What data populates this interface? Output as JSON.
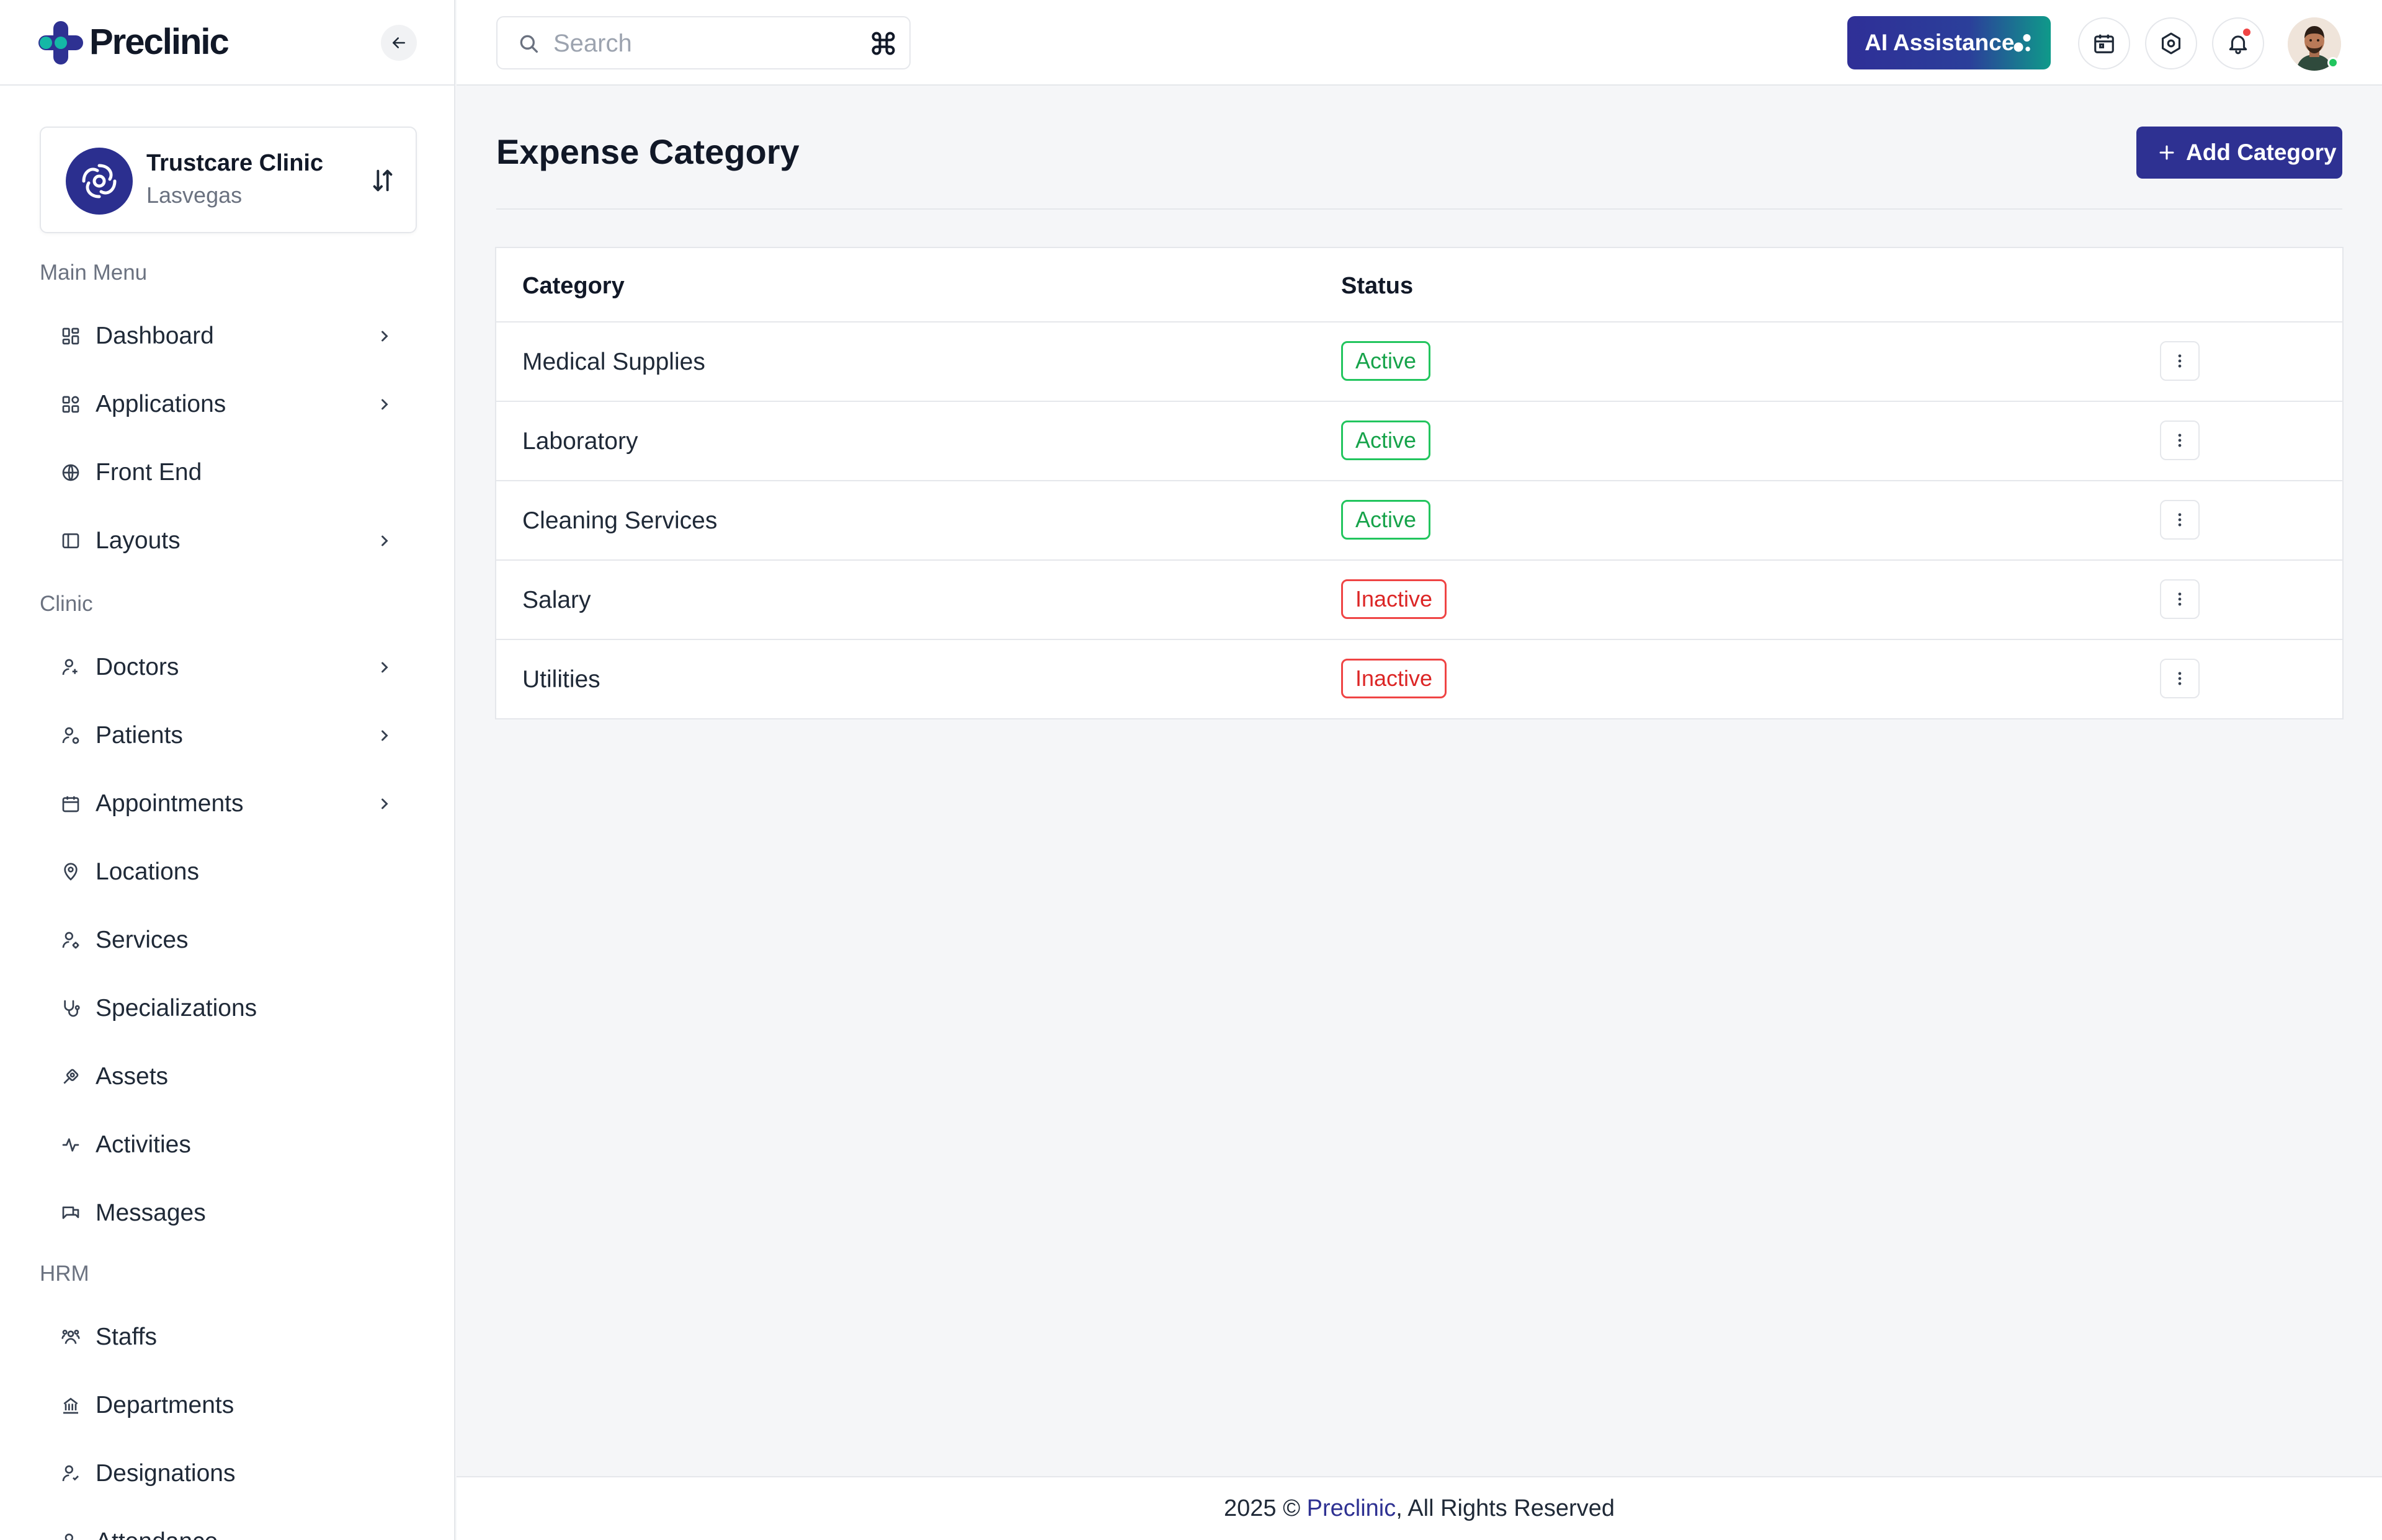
{
  "brand": {
    "name": "Preclinic"
  },
  "clinic": {
    "name": "Trustcare Clinic",
    "location": "Lasvegas"
  },
  "sidebar": {
    "sections": [
      {
        "title": "Main Menu"
      },
      {
        "title": "Clinic"
      },
      {
        "title": "HRM"
      }
    ],
    "items": [
      {
        "label": "Dashboard",
        "icon": "dashboard-icon",
        "has_children": true
      },
      {
        "label": "Applications",
        "icon": "applications-icon",
        "has_children": true
      },
      {
        "label": "Front End",
        "icon": "globe-icon",
        "has_children": false
      },
      {
        "label": "Layouts",
        "icon": "layout-icon",
        "has_children": true
      },
      {
        "label": "Doctors",
        "icon": "doctor-icon",
        "has_children": true
      },
      {
        "label": "Patients",
        "icon": "patient-icon",
        "has_children": true
      },
      {
        "label": "Appointments",
        "icon": "calendar-icon",
        "has_children": true
      },
      {
        "label": "Locations",
        "icon": "location-pin-icon",
        "has_children": false
      },
      {
        "label": "Services",
        "icon": "services-icon",
        "has_children": false
      },
      {
        "label": "Specializations",
        "icon": "stethoscope-icon",
        "has_children": false
      },
      {
        "label": "Assets",
        "icon": "assets-icon",
        "has_children": false
      },
      {
        "label": "Activities",
        "icon": "activity-icon",
        "has_children": false
      },
      {
        "label": "Messages",
        "icon": "messages-icon",
        "has_children": false
      },
      {
        "label": "Staffs",
        "icon": "staff-icon",
        "has_children": false
      },
      {
        "label": "Departments",
        "icon": "department-icon",
        "has_children": false
      },
      {
        "label": "Designations",
        "icon": "designation-icon",
        "has_children": false
      },
      {
        "label": "Attendance",
        "icon": "attendance-icon",
        "has_children": false
      }
    ]
  },
  "topbar": {
    "search_placeholder": "Search",
    "ai_button_label": "AI Assistance"
  },
  "page": {
    "title": "Expense Category",
    "add_button_label": "Add Category"
  },
  "table": {
    "columns": [
      "Category",
      "Status"
    ],
    "rows": [
      {
        "category": "Medical Supplies",
        "status": "Active"
      },
      {
        "category": "Laboratory",
        "status": "Active"
      },
      {
        "category": "Cleaning Services",
        "status": "Active"
      },
      {
        "category": "Salary",
        "status": "Inactive"
      },
      {
        "category": "Utilities",
        "status": "Inactive"
      }
    ]
  },
  "footer": {
    "prefix": "2025 ©",
    "brand": "Preclinic",
    "suffix": ", All Rights Reserved"
  },
  "colors": {
    "primary": "#2e3192",
    "active": "#16a34a",
    "inactive": "#dc2626",
    "accent_teal": "#0f9a8a"
  }
}
